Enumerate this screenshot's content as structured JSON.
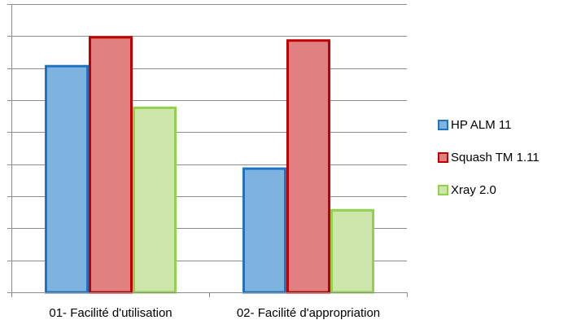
{
  "chart_data": {
    "type": "bar",
    "categories": [
      "01- Facilité d'utilisation",
      "02- Facilité d'appropriation"
    ],
    "series": [
      {
        "name": "HP ALM 11",
        "values": [
          7.1,
          3.9
        ],
        "fill": "#7EB3E0",
        "stroke": "#1F73C0"
      },
      {
        "name": "Squash TM 1.11",
        "values": [
          8.0,
          7.9
        ],
        "fill": "#E08080",
        "stroke": "#C00000"
      },
      {
        "name": "Xray 2.0",
        "values": [
          5.8,
          2.6
        ],
        "fill": "#CDE6A9",
        "stroke": "#92D050"
      }
    ],
    "ylim": [
      0,
      9
    ],
    "grid": true,
    "legend_position": "right"
  }
}
